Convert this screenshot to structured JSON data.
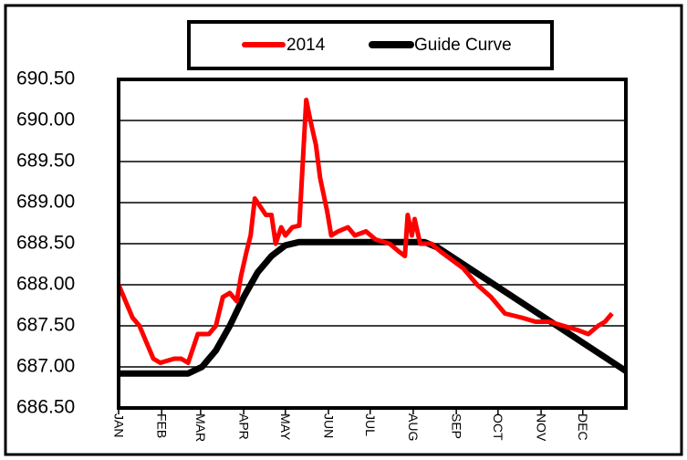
{
  "chart_data": {
    "type": "line",
    "xlim": [
      0,
      365
    ],
    "xticks": [
      {
        "value": 0,
        "label": "JAN"
      },
      {
        "value": 31,
        "label": "FEB"
      },
      {
        "value": 59,
        "label": "MAR"
      },
      {
        "value": 90,
        "label": "APR"
      },
      {
        "value": 120,
        "label": "MAY"
      },
      {
        "value": 151,
        "label": "JUN"
      },
      {
        "value": 181,
        "label": "JUL"
      },
      {
        "value": 212,
        "label": "AUG"
      },
      {
        "value": 243,
        "label": "SEP"
      },
      {
        "value": 273,
        "label": "OCT"
      },
      {
        "value": 304,
        "label": "NOV"
      },
      {
        "value": 334,
        "label": "DEC"
      }
    ],
    "ylim": [
      686.5,
      690.5
    ],
    "yticks": [
      {
        "value": 686.5,
        "label": "686.50"
      },
      {
        "value": 687,
        "label": "687.00"
      },
      {
        "value": 687.5,
        "label": "687.50"
      },
      {
        "value": 688,
        "label": "688.00"
      },
      {
        "value": 688.5,
        "label": "688.50"
      },
      {
        "value": 689,
        "label": "689.00"
      },
      {
        "value": 689.5,
        "label": "689.50"
      },
      {
        "value": 690,
        "label": "690.00"
      },
      {
        "value": 690.5,
        "label": "690.50"
      }
    ],
    "grid": true,
    "legend": "top",
    "series": [
      {
        "name": "2014",
        "color": "#ff0000",
        "x": [
          0,
          10,
          15,
          25,
          30,
          40,
          45,
          50,
          57,
          65,
          70,
          75,
          80,
          85,
          88,
          92,
          95,
          98,
          102,
          106,
          110,
          113,
          117,
          120,
          125,
          130,
          135,
          138,
          142,
          145,
          150,
          153,
          158,
          165,
          170,
          178,
          185,
          195,
          202,
          206,
          208,
          211,
          213,
          217,
          225,
          232,
          240,
          248,
          258,
          268,
          278,
          290,
          300,
          310,
          320,
          330,
          338,
          345,
          350,
          355
        ],
        "values": [
          688.0,
          687.6,
          687.5,
          687.1,
          687.05,
          687.1,
          687.1,
          687.05,
          687.4,
          687.4,
          687.5,
          687.85,
          687.9,
          687.8,
          688.1,
          688.4,
          688.6,
          689.05,
          688.95,
          688.85,
          688.85,
          688.5,
          688.7,
          688.6,
          688.7,
          688.72,
          690.25,
          690.0,
          689.7,
          689.3,
          688.9,
          688.6,
          688.65,
          688.7,
          688.6,
          688.65,
          688.55,
          688.5,
          688.4,
          688.35,
          688.85,
          688.6,
          688.8,
          688.5,
          688.5,
          688.4,
          688.3,
          688.2,
          688.0,
          687.85,
          687.65,
          687.6,
          687.55,
          687.55,
          687.5,
          687.45,
          687.4,
          687.5,
          687.55,
          687.65
        ]
      },
      {
        "name": "Guide Curve",
        "color": "#000000",
        "x": [
          0,
          50,
          60,
          70,
          80,
          90,
          100,
          110,
          120,
          130,
          220,
          230,
          365
        ],
        "values": [
          686.92,
          686.92,
          687.0,
          687.2,
          687.5,
          687.85,
          688.15,
          688.35,
          688.48,
          688.52,
          688.52,
          688.45,
          686.95
        ]
      }
    ]
  }
}
